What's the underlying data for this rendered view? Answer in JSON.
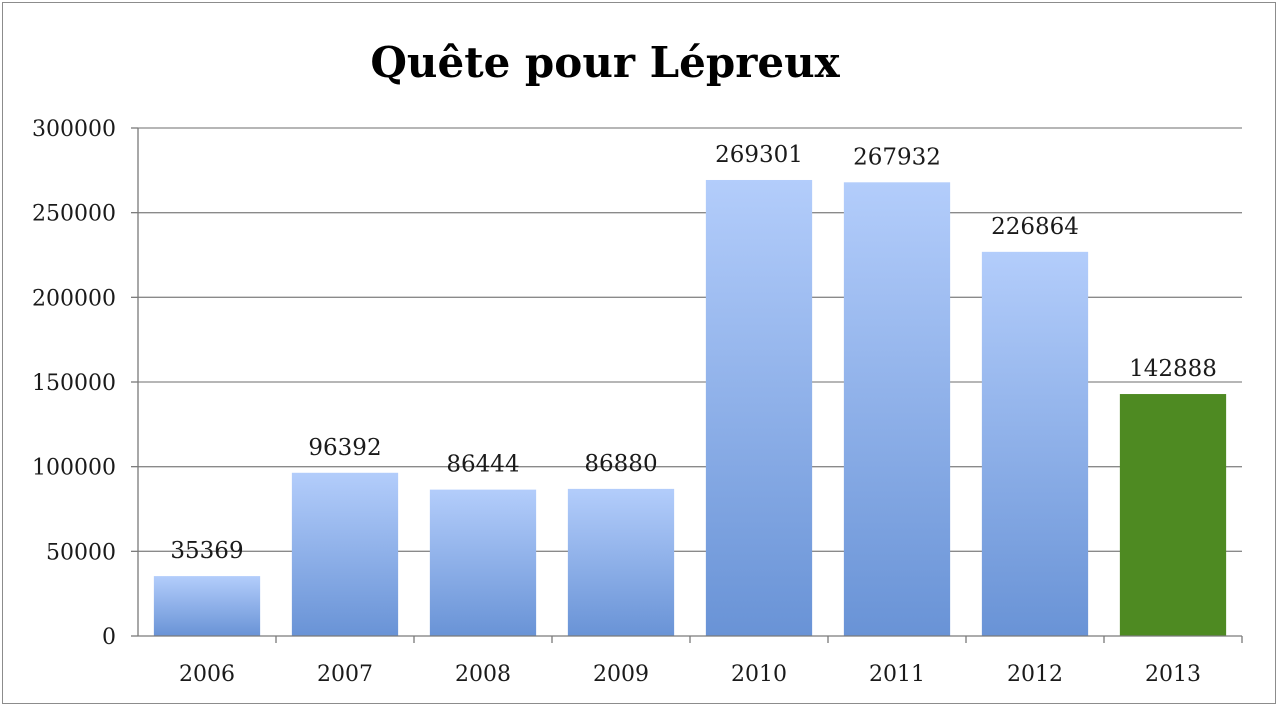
{
  "chart_data": {
    "type": "bar",
    "title": "Quête pour Lépreux",
    "xlabel": "",
    "ylabel": "",
    "categories": [
      "2006",
      "2007",
      "2008",
      "2009",
      "2010",
      "2011",
      "2012",
      "2013"
    ],
    "values": [
      35369,
      96392,
      86444,
      86880,
      269301,
      267932,
      226864,
      142888
    ],
    "data_labels": [
      "35369",
      "96392",
      "86444",
      "86880",
      "269301",
      "267932",
      "226864",
      "142888"
    ],
    "ylim": [
      0,
      300000
    ],
    "yticks": [
      0,
      50000,
      100000,
      150000,
      200000,
      250000,
      300000
    ],
    "ytick_labels": [
      "0",
      "50000",
      "100000",
      "150000",
      "200000",
      "250000",
      "300000"
    ],
    "grid": true,
    "legend": "none",
    "colors": {
      "bar_gradient_top": "#b3cdfb",
      "bar_gradient_bottom": "#6993d6",
      "highlight_bar": "#4e8a22",
      "highlight_category": "2013"
    }
  }
}
